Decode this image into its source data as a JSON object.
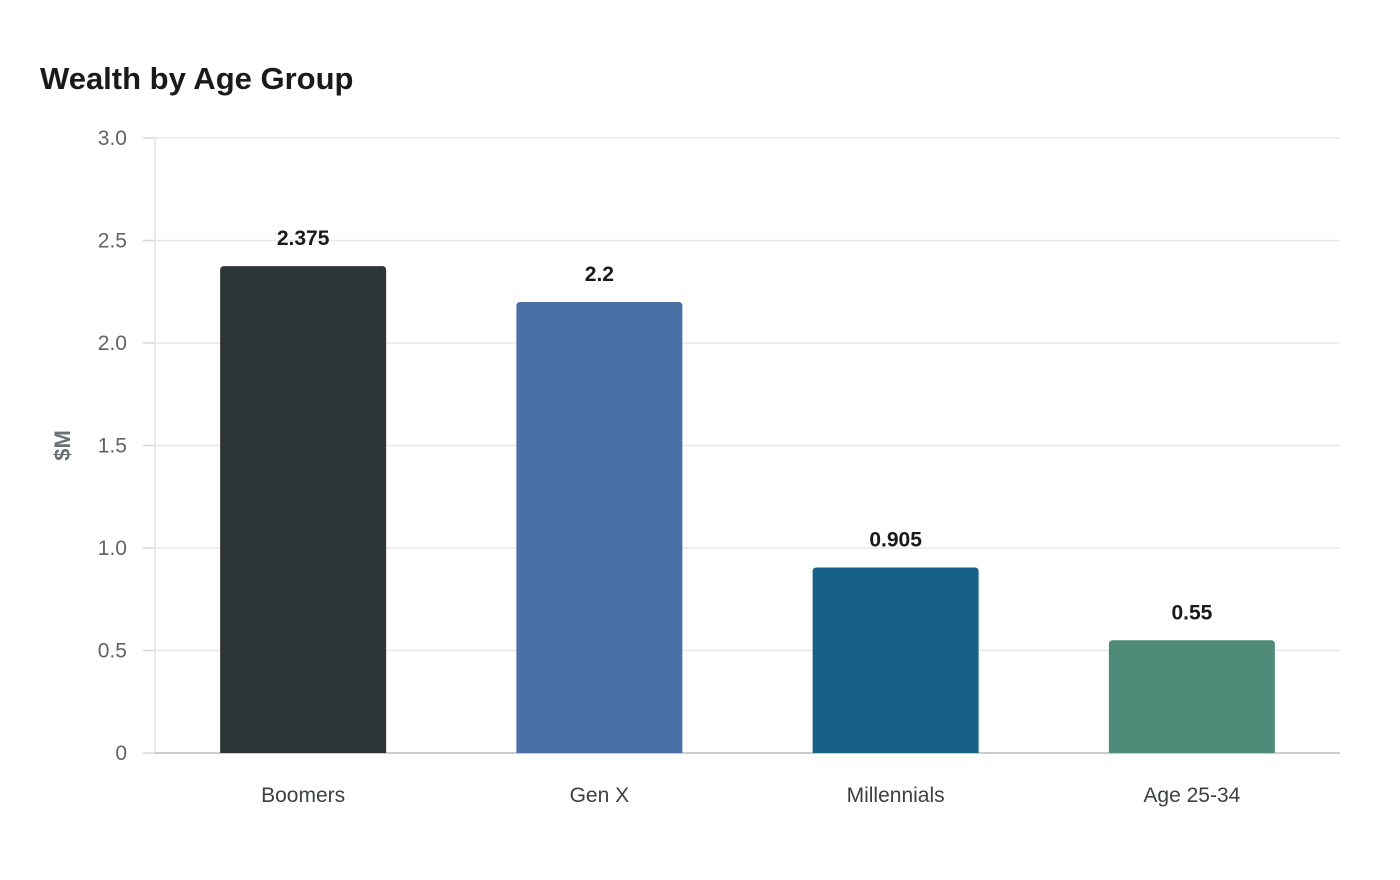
{
  "chart_data": {
    "type": "bar",
    "title": "Wealth by Age Group",
    "xlabel": "",
    "ylabel": "$M",
    "categories": [
      "Boomers",
      "Gen X",
      "Millennials",
      "Age 25-34"
    ],
    "values": [
      2.375,
      2.2,
      0.905,
      0.55
    ],
    "value_labels": [
      "2.375",
      "2.2",
      "0.905",
      "0.55"
    ],
    "colors": [
      "#2e3538",
      "#4a6fa5",
      "#176087",
      "#4f8b78"
    ],
    "ylim": [
      0,
      3.0
    ],
    "yticks": [
      0,
      0.5,
      1.0,
      1.5,
      2.0,
      2.5,
      3.0
    ],
    "ytick_labels": [
      "0",
      "0.5",
      "1.0",
      "1.5",
      "2.0",
      "2.5",
      "3.0"
    ],
    "grid": true,
    "legend": "none"
  }
}
